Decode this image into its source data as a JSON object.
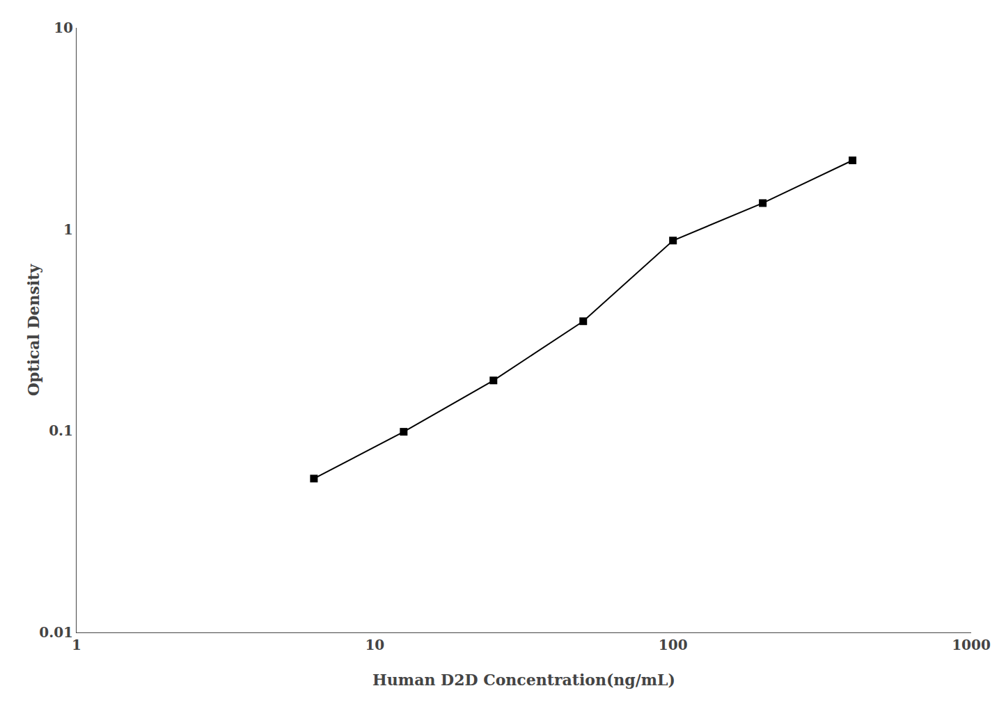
{
  "chart_data": {
    "type": "line",
    "x": [
      6.25,
      12.5,
      25,
      50,
      100,
      200,
      400
    ],
    "values": [
      0.058,
      0.099,
      0.178,
      0.35,
      0.88,
      1.35,
      2.2
    ],
    "xlabel": "Human D2D Concentration(ng/mL)",
    "ylabel": "Optical Density",
    "xlim": [
      1,
      1000
    ],
    "ylim": [
      0.01,
      10
    ],
    "xticks": [
      1,
      10,
      100,
      1000
    ],
    "yticks": [
      0.01,
      0.1,
      1,
      10
    ],
    "log": true,
    "grid": false,
    "color": "#000000",
    "marker": "square",
    "line_style": "solid"
  }
}
